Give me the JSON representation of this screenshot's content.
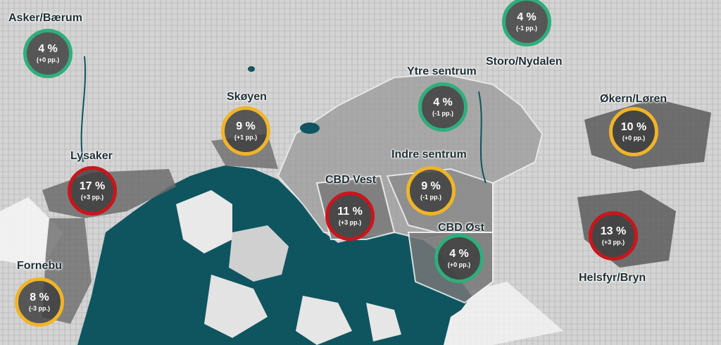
{
  "colors": {
    "sea": "#0e5560",
    "land": "#dcdcdc",
    "green_ring": "#2fae7c",
    "yellow_ring": "#f0b428",
    "red_ring": "#c8161c"
  },
  "areas": [
    {
      "name": "Asker/Bærum",
      "pct": "4 %",
      "change": "(+0 pp.)",
      "status": "green"
    },
    {
      "name": "Storo/Nydalen",
      "pct": "4 %",
      "change": "(-1 pp.)",
      "status": "green"
    },
    {
      "name": "Ytre sentrum",
      "pct": "4 %",
      "change": "(-1 pp.)",
      "status": "green"
    },
    {
      "name": "Skøyen",
      "pct": "9 %",
      "change": "(+1 pp.)",
      "status": "yellow"
    },
    {
      "name": "Økern/Løren",
      "pct": "10 %",
      "change": "(+0 pp.)",
      "status": "yellow"
    },
    {
      "name": "Lysaker",
      "pct": "17 %",
      "change": "(+3 pp.)",
      "status": "red"
    },
    {
      "name": "Indre sentrum",
      "pct": "9 %",
      "change": "(-1 pp.)",
      "status": "yellow"
    },
    {
      "name": "CBD Vest",
      "pct": "11 %",
      "change": "(+3 pp.)",
      "status": "red"
    },
    {
      "name": "CBD Øst",
      "pct": "4 %",
      "change": "(+0 pp.)",
      "status": "green"
    },
    {
      "name": "Helsfyr/Bryn",
      "pct": "13 %",
      "change": "(+3 pp.)",
      "status": "red"
    },
    {
      "name": "Fornebu",
      "pct": "8 %",
      "change": "(-3 pp.)",
      "status": "yellow"
    }
  ]
}
